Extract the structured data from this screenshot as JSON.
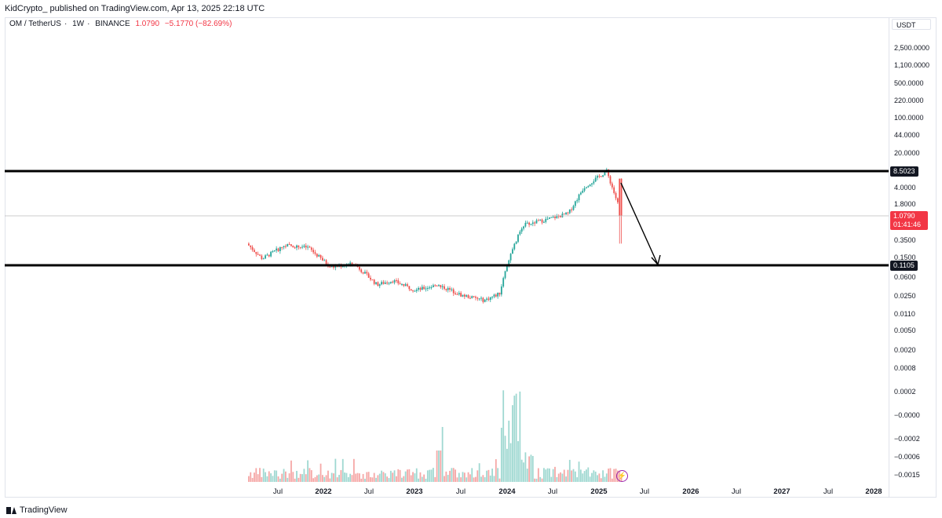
{
  "header": {
    "publisher_line": "KidCrypto_ published on TradingView.com, Apr 13, 2025 22:18 UTC"
  },
  "symbol": {
    "pair": "OM / TetherUS",
    "interval": "1W",
    "exchange": "BINANCE",
    "price": "1.0790",
    "change": "−5.1770 (−82.69%)"
  },
  "y_axis": {
    "currency": "USDT",
    "labels": [
      "2,500.0000",
      "1,100.0000",
      "500.0000",
      "220.0000",
      "100.0000",
      "44.0000",
      "20.0000",
      "4.0000",
      "1.8000",
      "0.3500",
      "0.1500",
      "0.0600",
      "0.0250",
      "0.0110",
      "0.0050",
      "0.0020",
      "0.0008",
      "0.0002",
      "−0.0000",
      "−0.0002",
      "−0.0006",
      "−0.0015"
    ]
  },
  "levels": {
    "resistance": "8.5023",
    "support": "0.1105"
  },
  "current_price_badge": {
    "price": "1.0790",
    "countdown": "01:41:46"
  },
  "x_axis": {
    "labels": [
      {
        "text": "Jul",
        "year": false
      },
      {
        "text": "2022",
        "year": true
      },
      {
        "text": "Jul",
        "year": false
      },
      {
        "text": "2023",
        "year": true
      },
      {
        "text": "Jul",
        "year": false
      },
      {
        "text": "2024",
        "year": true
      },
      {
        "text": "Jul",
        "year": false
      },
      {
        "text": "2025",
        "year": true
      },
      {
        "text": "Jul",
        "year": false
      },
      {
        "text": "2026",
        "year": true
      },
      {
        "text": "Jul",
        "year": false
      },
      {
        "text": "2027",
        "year": true
      },
      {
        "text": "Jul",
        "year": false
      },
      {
        "text": "2028",
        "year": true
      }
    ]
  },
  "footer": {
    "brand": "TradingView"
  },
  "colors": {
    "up": "#26a69a",
    "down": "#ef5350",
    "volume_up": "#9fd8d1",
    "volume_down": "#f5a7a6",
    "level_line": "#000000",
    "price_line": "#bdbdbd"
  },
  "chart_data": {
    "type": "candlestick",
    "scale": "log",
    "horizontal_levels": [
      8.5023,
      0.1105
    ],
    "current_price": 1.079,
    "x_range": [
      "2021-03",
      "2028-01"
    ],
    "price_path": [
      {
        "x": "2021-03",
        "close": 0.3
      },
      {
        "x": "2021-05",
        "close": 0.15
      },
      {
        "x": "2021-08",
        "close": 0.28
      },
      {
        "x": "2021-11",
        "close": 0.25
      },
      {
        "x": "2022-02",
        "close": 0.1
      },
      {
        "x": "2022-05",
        "close": 0.12
      },
      {
        "x": "2022-08",
        "close": 0.045
      },
      {
        "x": "2022-10",
        "close": 0.055
      },
      {
        "x": "2023-01",
        "close": 0.035
      },
      {
        "x": "2023-04",
        "close": 0.045
      },
      {
        "x": "2023-07",
        "close": 0.028
      },
      {
        "x": "2023-10",
        "close": 0.022
      },
      {
        "x": "2023-12",
        "close": 0.03
      },
      {
        "x": "2024-01",
        "close": 0.12
      },
      {
        "x": "2024-03",
        "close": 0.7
      },
      {
        "x": "2024-06",
        "close": 0.9
      },
      {
        "x": "2024-09",
        "close": 1.2
      },
      {
        "x": "2024-11",
        "close": 4.0
      },
      {
        "x": "2025-02",
        "close": 8.5
      },
      {
        "x": "2025-04",
        "close": 1.079
      }
    ],
    "projection": {
      "from": {
        "x": "2025-03",
        "y": 6.0
      },
      "to": {
        "x": "2025-06",
        "y": 0.1105
      }
    }
  }
}
